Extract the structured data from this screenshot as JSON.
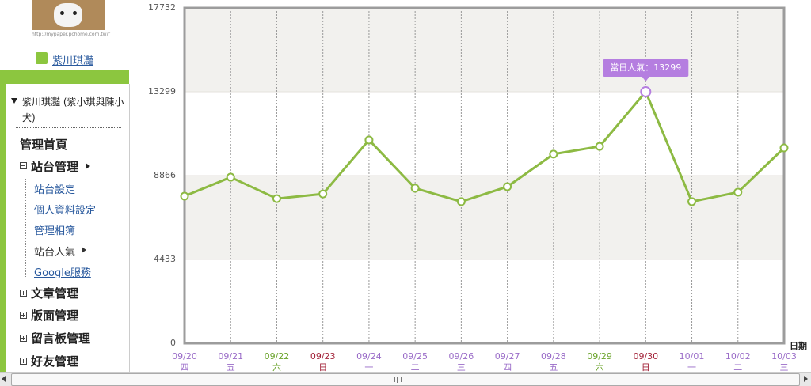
{
  "sidebar": {
    "image_caption": "http://mypaper.pchome.com.tw/r",
    "user_name": "紫川琪灩",
    "blog_title": "紫川琪灩 (紫小琪與陳小犬)",
    "menu": [
      {
        "label": "管理首頁"
      },
      {
        "label": "站台管理",
        "children": [
          "站台設定",
          "個人資料設定",
          "管理相簿",
          "站台人氣",
          "Google服務"
        ]
      },
      {
        "label": "文章管理"
      },
      {
        "label": "版面管理"
      },
      {
        "label": "留言板管理"
      },
      {
        "label": "好友管理"
      }
    ]
  },
  "chart_data": {
    "type": "line",
    "x_label": "日期",
    "categories": [
      "09/20",
      "09/21",
      "09/22",
      "09/23",
      "09/24",
      "09/25",
      "09/26",
      "09/27",
      "09/28",
      "09/29",
      "09/30",
      "10/01",
      "10/02",
      "10/03"
    ],
    "weekdays": [
      "四",
      "五",
      "六",
      "日",
      "一",
      "二",
      "三",
      "四",
      "五",
      "六",
      "日",
      "一",
      "二",
      "三"
    ],
    "label_colors": [
      "#9a6cc8",
      "#9a6cc8",
      "#6aa32a",
      "#a3243a",
      "#9a6cc8",
      "#9a6cc8",
      "#9a6cc8",
      "#9a6cc8",
      "#9a6cc8",
      "#6aa32a",
      "#a3243a",
      "#9a6cc8",
      "#9a6cc8",
      "#9a6cc8"
    ],
    "series": [
      {
        "name": "當日人氣",
        "color": "#8dba43",
        "values": [
          7780,
          8780,
          7650,
          7900,
          10750,
          8200,
          7490,
          8280,
          10000,
          10410,
          13299,
          7490,
          7990,
          10330
        ]
      }
    ],
    "tooltip_label": "當日人氣：",
    "highlight": "09/30",
    "highlight_color": "#b57ee0",
    "ylim": [
      0,
      17732
    ],
    "yticks": [
      0,
      4433,
      8866,
      13299,
      17732
    ],
    "band_color": "#f2f1ee"
  }
}
